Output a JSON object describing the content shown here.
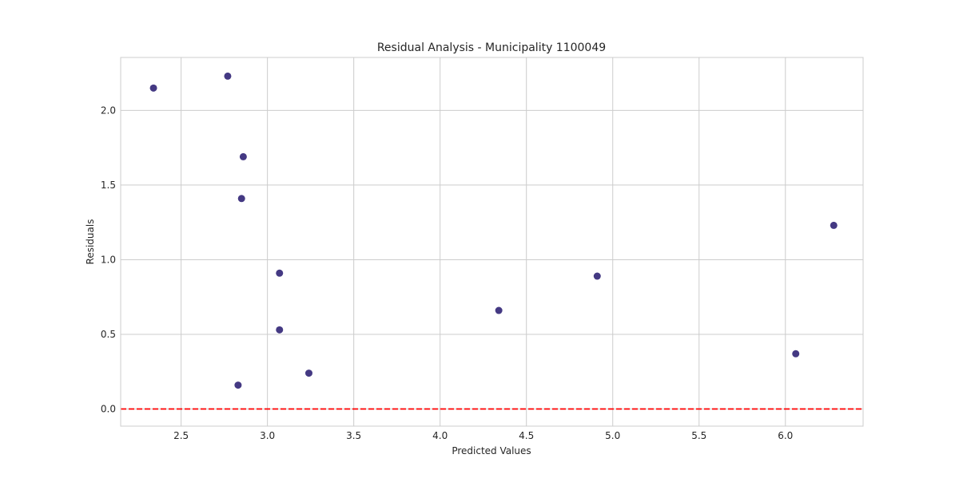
{
  "chart_data": {
    "type": "scatter",
    "title": "Residual Analysis - Municipality 1100049",
    "xlabel": "Predicted Values",
    "ylabel": "Residuals",
    "xlim": [
      2.15,
      6.45
    ],
    "ylim": [
      -0.115,
      2.355
    ],
    "xticks": [
      2.5,
      3.0,
      3.5,
      4.0,
      4.5,
      5.0,
      5.5,
      6.0
    ],
    "xtick_labels": [
      "2.5",
      "3.0",
      "3.5",
      "4.0",
      "4.5",
      "5.0",
      "5.5",
      "6.0"
    ],
    "yticks": [
      0.0,
      0.5,
      1.0,
      1.5,
      2.0
    ],
    "ytick_labels": [
      "0.0",
      "0.5",
      "1.0",
      "1.5",
      "2.0"
    ],
    "grid": true,
    "points": [
      {
        "x": 2.34,
        "y": 2.15
      },
      {
        "x": 2.77,
        "y": 2.23
      },
      {
        "x": 2.86,
        "y": 1.69
      },
      {
        "x": 2.85,
        "y": 1.41
      },
      {
        "x": 3.07,
        "y": 0.91
      },
      {
        "x": 3.07,
        "y": 0.53
      },
      {
        "x": 3.24,
        "y": 0.24
      },
      {
        "x": 2.83,
        "y": 0.16
      },
      {
        "x": 4.34,
        "y": 0.66
      },
      {
        "x": 4.91,
        "y": 0.89
      },
      {
        "x": 6.06,
        "y": 0.37
      },
      {
        "x": 6.28,
        "y": 1.23
      }
    ],
    "reference_line": {
      "y": 0.0,
      "style": "dashed"
    },
    "colors": {
      "point": "#443983",
      "reference_line": "#ff0000",
      "grid": "#cccccc",
      "frame": "#cccccc"
    }
  }
}
